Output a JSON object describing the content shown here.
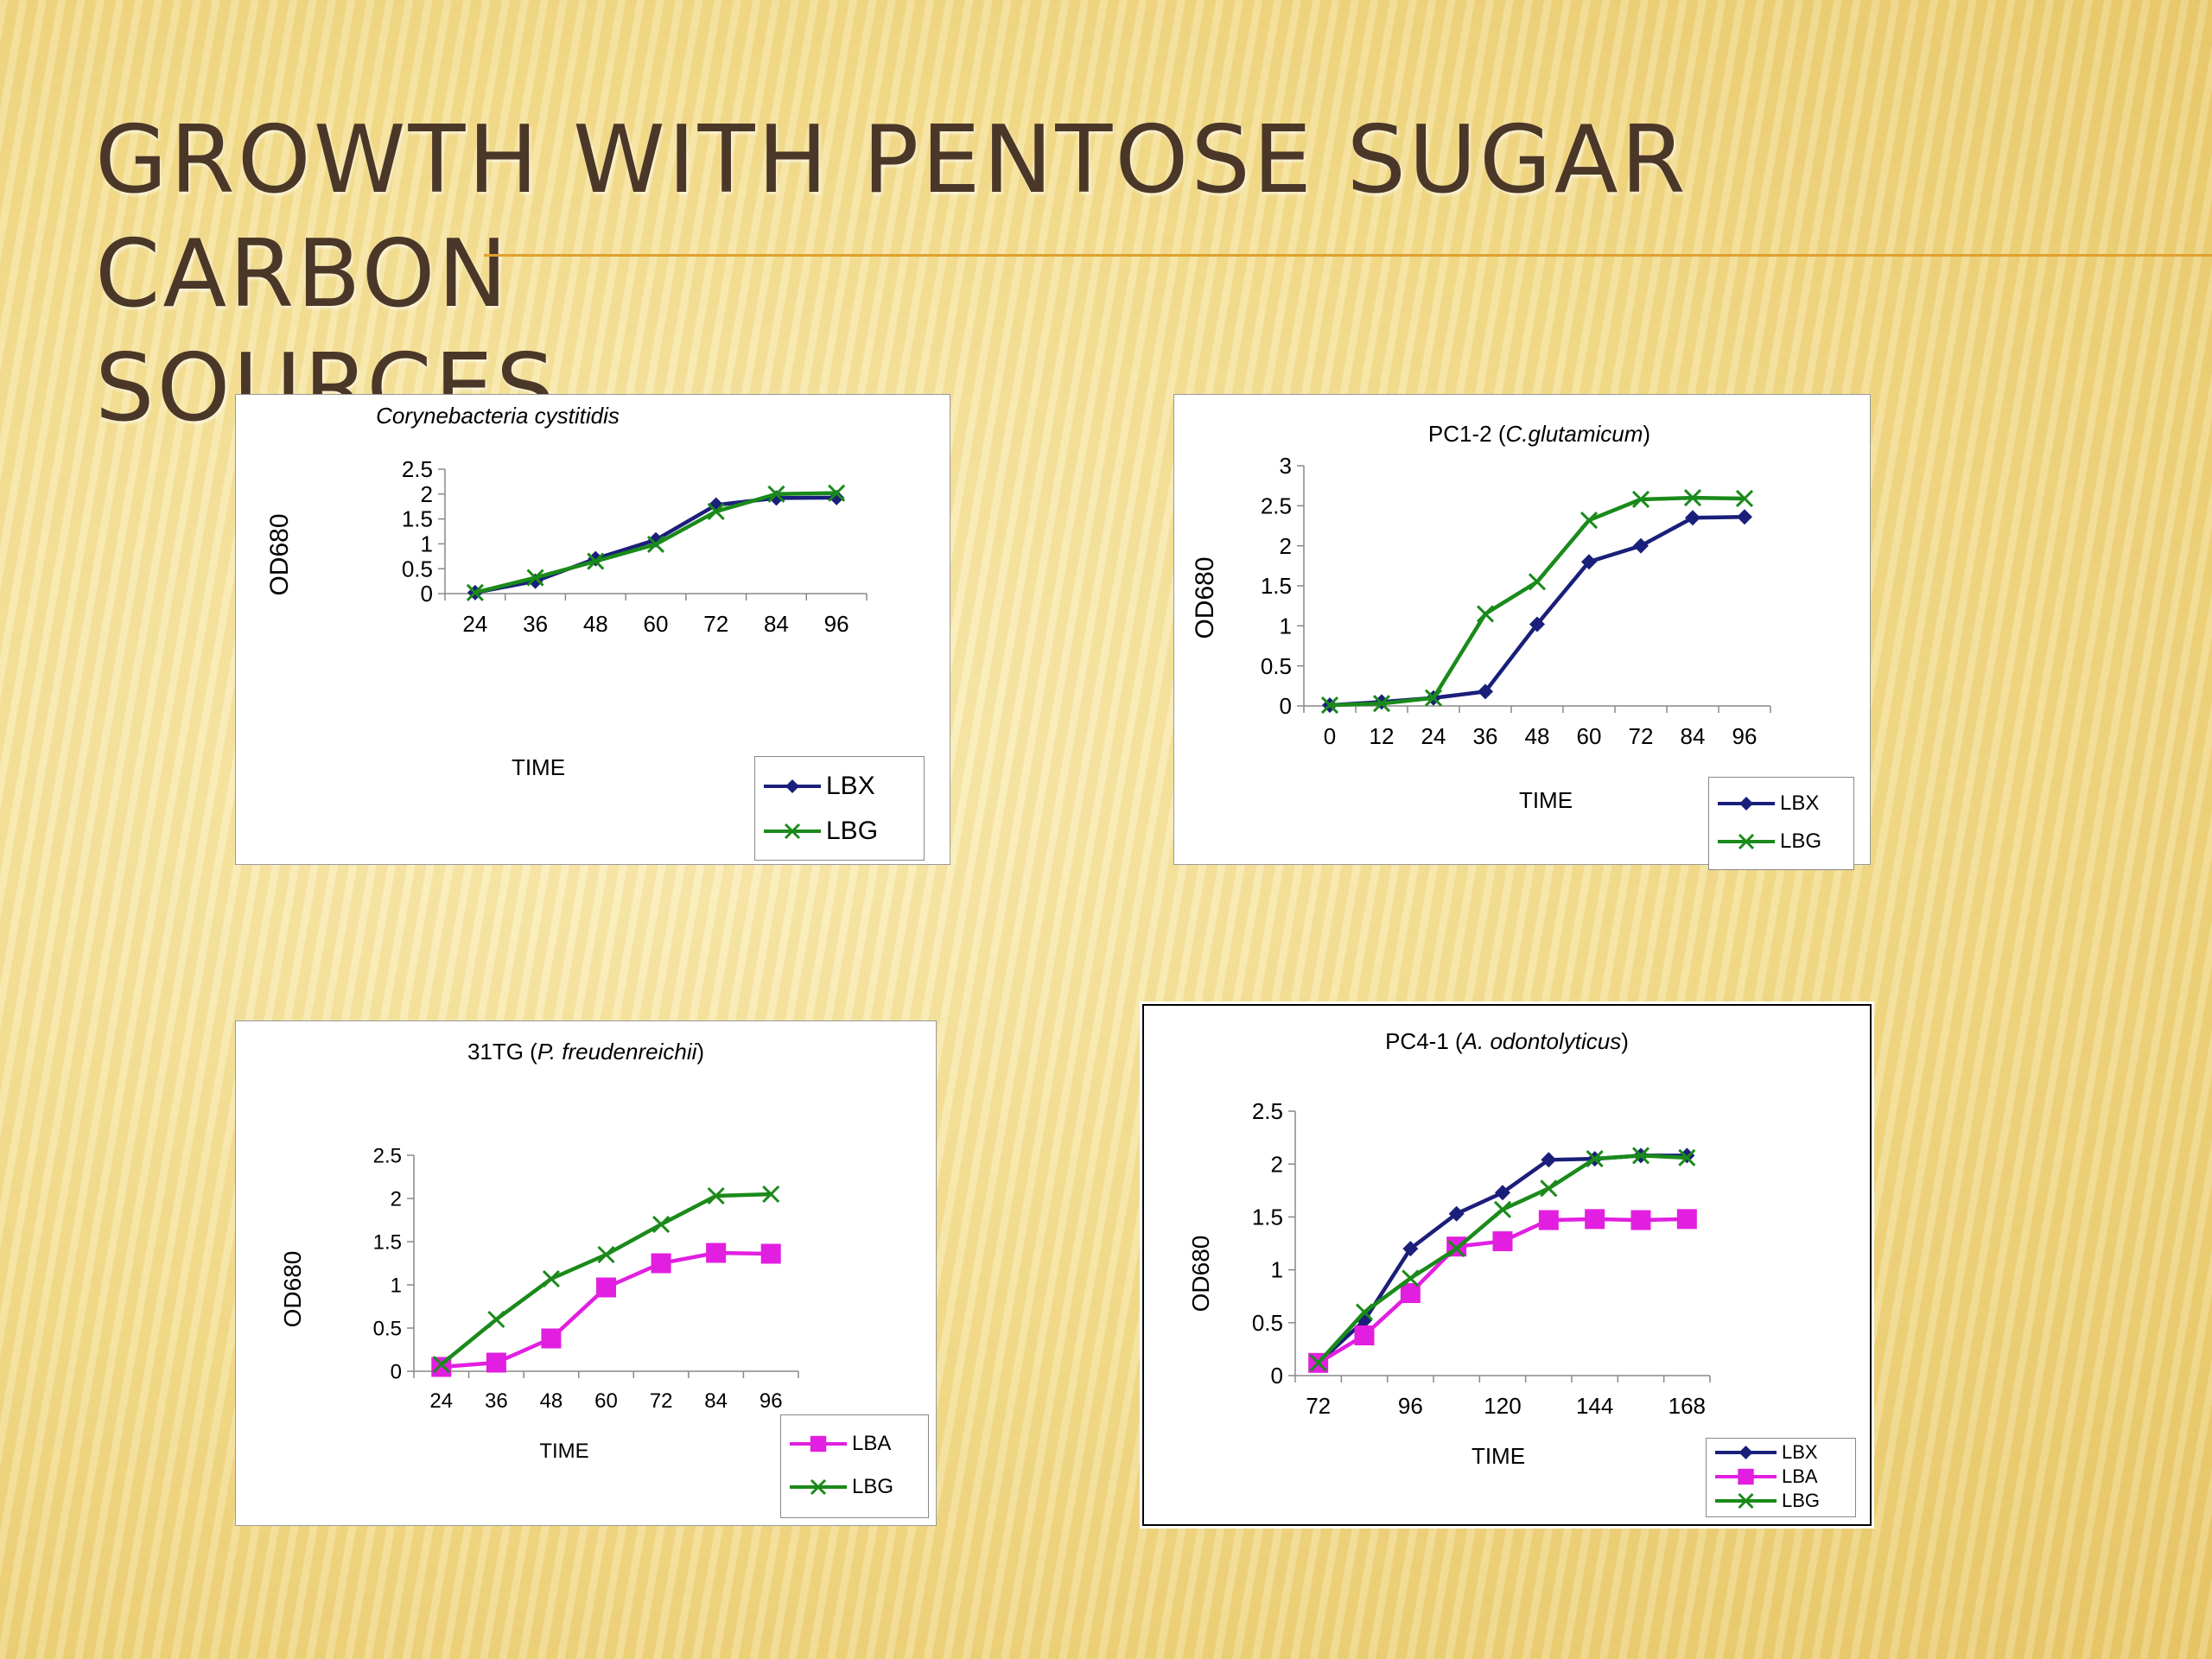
{
  "slide": {
    "title_line1": "GROWTH WITH PENTOSE SUGAR CARBON",
    "title_line2": "SOURCES",
    "rule_color": "#e0a030"
  },
  "colors": {
    "LBX": "#1a1f7a",
    "LBG": "#1a8a1a",
    "LBA": "#e21fe0"
  },
  "chart_data": [
    {
      "type": "line",
      "title_italic": "Corynebacteria cystitidis",
      "title_normal": "",
      "ylabel": "OD680",
      "xlabel": "TIME",
      "x": [
        24,
        36,
        48,
        60,
        72,
        84,
        96
      ],
      "ylim": [
        0,
        2.5
      ],
      "ystep": 0.5,
      "series": [
        {
          "name": "LBX",
          "marker": "diamond",
          "values": [
            0.02,
            0.25,
            0.7,
            1.08,
            1.78,
            1.92,
            1.93
          ]
        },
        {
          "name": "LBG",
          "marker": "x",
          "values": [
            0.02,
            0.32,
            0.65,
            0.99,
            1.65,
            2.0,
            2.02
          ]
        }
      ],
      "legend_position": "bottom-right"
    },
    {
      "type": "line",
      "title_normal": "PC1-2 (",
      "title_italic": "C.glutamicum",
      "title_suffix": ")",
      "ylabel": "OD680",
      "xlabel": "TIME",
      "x": [
        0,
        12,
        24,
        36,
        48,
        60,
        72,
        84,
        96
      ],
      "ylim": [
        0,
        3
      ],
      "ystep": 0.5,
      "series": [
        {
          "name": "LBX",
          "marker": "diamond",
          "values": [
            0.01,
            0.05,
            0.1,
            0.18,
            1.02,
            1.8,
            2.0,
            2.35,
            2.36
          ]
        },
        {
          "name": "LBG",
          "marker": "x",
          "values": [
            0.01,
            0.03,
            0.1,
            1.15,
            1.55,
            2.32,
            2.58,
            2.6,
            2.59
          ]
        }
      ],
      "legend_position": "bottom-right"
    },
    {
      "type": "line",
      "title_normal": "31TG (",
      "title_italic": "P. freudenreichii",
      "title_suffix": ")",
      "ylabel": "OD680",
      "xlabel": "TIME",
      "x": [
        24,
        36,
        48,
        60,
        72,
        84,
        96
      ],
      "ylim": [
        0,
        2.5
      ],
      "ystep": 0.5,
      "series": [
        {
          "name": "LBA",
          "marker": "square",
          "values": [
            0.05,
            0.1,
            0.38,
            0.97,
            1.25,
            1.37,
            1.36
          ]
        },
        {
          "name": "LBG",
          "marker": "x",
          "values": [
            0.08,
            0.6,
            1.07,
            1.35,
            1.7,
            2.03,
            2.05
          ]
        }
      ],
      "legend_position": "bottom-right"
    },
    {
      "type": "line",
      "title_normal": "PC4-1 (",
      "title_italic": "A. odontolyticus",
      "title_suffix": ")",
      "ylabel": "OD680",
      "xlabel": "TIME",
      "x": [
        72,
        84,
        96,
        108,
        120,
        132,
        144,
        156,
        168
      ],
      "xticks": [
        72,
        96,
        120,
        144,
        168
      ],
      "ylim": [
        0,
        2.5
      ],
      "ystep": 0.5,
      "series": [
        {
          "name": "LBX",
          "marker": "diamond",
          "values": [
            0.12,
            0.52,
            1.2,
            1.53,
            1.73,
            2.04,
            2.05,
            2.08,
            2.08
          ]
        },
        {
          "name": "LBA",
          "marker": "square",
          "values": [
            0.12,
            0.38,
            0.78,
            1.22,
            1.27,
            1.47,
            1.48,
            1.47,
            1.48
          ]
        },
        {
          "name": "LBG",
          "marker": "x",
          "values": [
            0.12,
            0.6,
            0.92,
            1.2,
            1.57,
            1.77,
            2.05,
            2.08,
            2.06
          ]
        }
      ],
      "legend_position": "bottom-right"
    }
  ]
}
